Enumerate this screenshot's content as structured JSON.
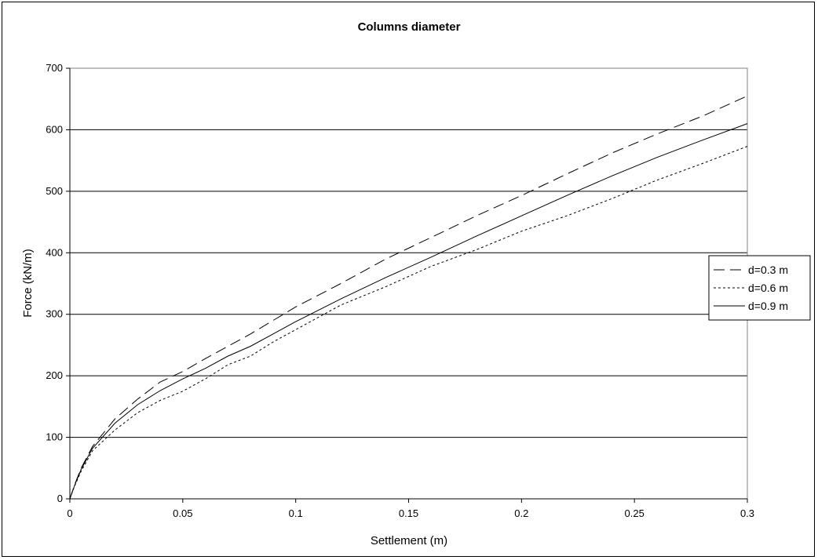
{
  "chart_data": {
    "type": "line",
    "title": "Columns diameter",
    "xlabel": "Settlement (m)",
    "ylabel": "Force (kN/m)",
    "xlim": [
      0,
      0.3
    ],
    "ylim": [
      0,
      700
    ],
    "xticks": [
      0,
      0.05,
      0.1,
      0.15,
      0.2,
      0.25,
      0.3
    ],
    "xtick_labels": [
      "0",
      "0.05",
      "0.1",
      "0.15",
      "0.2",
      "0.25",
      "0.3"
    ],
    "yticks": [
      0,
      100,
      200,
      300,
      400,
      500,
      600,
      700
    ],
    "ytick_labels": [
      "0",
      "100",
      "200",
      "300",
      "400",
      "500",
      "600",
      "700"
    ],
    "grid": "horizontal major gridlines",
    "legend_position": "right",
    "series": [
      {
        "name": "d=0.3 m",
        "line_style": "dashed",
        "x": [
          0,
          0.002,
          0.005,
          0.01,
          0.02,
          0.03,
          0.04,
          0.05,
          0.06,
          0.07,
          0.08,
          0.09,
          0.1,
          0.12,
          0.14,
          0.16,
          0.18,
          0.2,
          0.22,
          0.24,
          0.26,
          0.28,
          0.3
        ],
        "y": [
          0,
          22,
          50,
          85,
          130,
          162,
          190,
          207,
          228,
          248,
          268,
          290,
          312,
          350,
          390,
          425,
          460,
          493,
          528,
          562,
          593,
          622,
          655
        ]
      },
      {
        "name": "d=0.6 m",
        "line_style": "dotted",
        "x": [
          0,
          0.002,
          0.005,
          0.01,
          0.02,
          0.03,
          0.04,
          0.05,
          0.06,
          0.07,
          0.08,
          0.09,
          0.1,
          0.12,
          0.14,
          0.16,
          0.18,
          0.2,
          0.22,
          0.24,
          0.26,
          0.28,
          0.3
        ],
        "y": [
          0,
          20,
          45,
          78,
          112,
          140,
          160,
          175,
          195,
          218,
          232,
          255,
          275,
          315,
          345,
          378,
          405,
          435,
          460,
          488,
          518,
          545,
          573
        ]
      },
      {
        "name": "d=0.9 m",
        "line_style": "solid",
        "x": [
          0,
          0.002,
          0.005,
          0.01,
          0.02,
          0.03,
          0.04,
          0.05,
          0.06,
          0.07,
          0.08,
          0.09,
          0.1,
          0.12,
          0.14,
          0.16,
          0.18,
          0.2,
          0.22,
          0.24,
          0.26,
          0.28,
          0.3
        ],
        "y": [
          0,
          21,
          48,
          82,
          123,
          153,
          176,
          195,
          212,
          232,
          248,
          268,
          288,
          325,
          360,
          393,
          427,
          460,
          493,
          525,
          555,
          583,
          610
        ]
      }
    ]
  }
}
